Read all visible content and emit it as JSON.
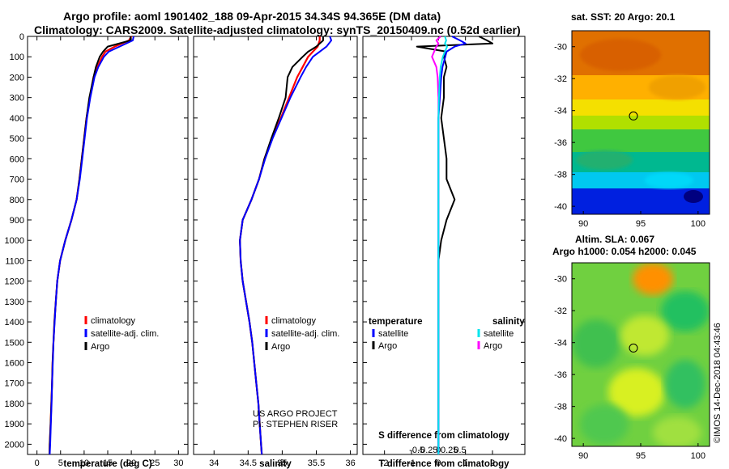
{
  "header": {
    "line1": "Argo profile: aoml 1901402_188 09-Apr-2015 34.34S 94.365E (DM data)",
    "line2": "Climatology: CARS2009. Satellite-adjusted climatology: synTS_20150409.nc (0.52d earlier)"
  },
  "colors": {
    "climatology": "#ff0000",
    "satellite": "#0000ff",
    "argo": "#000000",
    "satellite_s": "#00e5ee",
    "argo_s": "#ff00ff"
  },
  "chart_data": [
    {
      "type": "line",
      "name": "temperature-profile",
      "xlabel": "temperature (deg C)",
      "ylabel": "",
      "xlim": [
        -2,
        32
      ],
      "ylim": [
        2050,
        0
      ],
      "x_ticks": [
        "0",
        "5",
        "10",
        "15",
        "20",
        "25",
        "30"
      ],
      "y_ticks": [
        "0",
        "100",
        "200",
        "300",
        "400",
        "500",
        "600",
        "700",
        "800",
        "900",
        "1000",
        "1100",
        "1200",
        "1300",
        "1400",
        "1500",
        "1600",
        "1700",
        "1800",
        "1900",
        "2000"
      ],
      "legend": [
        "climatology",
        "satellite-adj. clim.",
        "Argo"
      ],
      "depth": [
        0,
        20,
        50,
        75,
        100,
        150,
        200,
        300,
        400,
        500,
        600,
        700,
        800,
        900,
        1000,
        1100,
        1200,
        1300,
        1400,
        1500,
        1600,
        1700,
        1800,
        1900,
        2000,
        2050
      ],
      "series": [
        {
          "name": "climatology",
          "values": [
            20.0,
            19.5,
            16.5,
            14.5,
            13.8,
            12.8,
            12.0,
            11.2,
            10.5,
            10.0,
            9.5,
            9.0,
            8.4,
            7.3,
            6.0,
            4.9,
            4.3,
            4.0,
            3.7,
            3.5,
            3.3,
            3.2,
            3.05,
            2.9,
            2.7,
            2.65
          ]
        },
        {
          "name": "satellite-adj. clim.",
          "values": [
            20.5,
            20.3,
            17.5,
            15.2,
            14.2,
            13.0,
            12.2,
            11.3,
            10.6,
            10.1,
            9.6,
            9.1,
            8.4,
            7.3,
            6.0,
            4.9,
            4.3,
            4.0,
            3.75,
            3.5,
            3.35,
            3.2,
            3.1,
            2.95,
            2.8,
            2.7
          ]
        },
        {
          "name": "Argo",
          "values": [
            19.8,
            19.8,
            15.0,
            14.0,
            13.3,
            12.5,
            12.0,
            11.1,
            10.5,
            10.0,
            9.5,
            9.0,
            8.4,
            7.3,
            6.0,
            4.9,
            4.3,
            4.0,
            3.7,
            3.5,
            3.3,
            3.2,
            3.05,
            2.9,
            2.7,
            2.65
          ]
        }
      ]
    },
    {
      "type": "line",
      "name": "salinity-profile",
      "xlabel": "salinity",
      "xlim": [
        33.7,
        36.1
      ],
      "ylim": [
        2050,
        0
      ],
      "x_ticks": [
        "34",
        "34.5",
        "35",
        "35.5",
        "36"
      ],
      "legend": [
        "climatology",
        "satellite-adj. clim.",
        "Argo"
      ],
      "annotation": [
        "US ARGO PROJECT",
        "PI: STEPHEN RISER"
      ],
      "depth": [
        0,
        20,
        50,
        75,
        100,
        150,
        200,
        300,
        400,
        500,
        600,
        700,
        800,
        900,
        1000,
        1100,
        1200,
        1300,
        1400,
        1500,
        1600,
        1700,
        1800,
        1900,
        2000,
        2050
      ],
      "series": [
        {
          "name": "climatology",
          "values": [
            35.55,
            35.55,
            35.52,
            35.45,
            35.38,
            35.3,
            35.22,
            35.1,
            34.98,
            34.85,
            34.74,
            34.66,
            34.55,
            34.42,
            34.38,
            34.39,
            34.42,
            34.47,
            34.52,
            34.56,
            34.59,
            34.62,
            34.65,
            34.67,
            34.69,
            34.7
          ]
        },
        {
          "name": "satellite-adj. clim.",
          "values": [
            35.7,
            35.72,
            35.65,
            35.55,
            35.45,
            35.35,
            35.27,
            35.12,
            34.99,
            34.86,
            34.75,
            34.66,
            34.55,
            34.42,
            34.38,
            34.39,
            34.42,
            34.47,
            34.52,
            34.56,
            34.59,
            34.62,
            34.65,
            34.67,
            34.69,
            34.7
          ]
        },
        {
          "name": "Argo",
          "values": [
            35.6,
            35.6,
            35.5,
            35.38,
            35.3,
            35.15,
            35.08,
            35.05,
            34.95,
            34.84,
            34.74,
            34.66,
            34.55,
            34.42,
            34.38,
            34.39,
            34.42,
            34.47,
            34.52,
            34.56,
            34.59,
            34.62,
            34.65,
            34.67,
            34.69,
            34.7
          ]
        }
      ]
    },
    {
      "type": "line",
      "name": "difference-profile",
      "xlabel": "T difference from climatology",
      "xlabel_top": "S difference from climatology",
      "xlim": [
        -2.8,
        3.2
      ],
      "ylim": [
        2050,
        0
      ],
      "x_ticks": [
        "-2",
        "-1",
        "0",
        "1",
        "2"
      ],
      "s_ticks": [
        "-0.5",
        "-0.25",
        "0",
        "0.25",
        "0.5"
      ],
      "legend_t": {
        "title": "temperature",
        "items": [
          "satellite",
          "Argo"
        ]
      },
      "legend_s": {
        "title": "salinity",
        "items": [
          "satellite",
          "Argo"
        ]
      },
      "depth": [
        0,
        20,
        35,
        50,
        75,
        100,
        150,
        200,
        300,
        400,
        500,
        600,
        700,
        800,
        900,
        1000,
        1100,
        1200,
        1400,
        1600,
        1800,
        1900,
        2000,
        2050
      ],
      "series": [
        {
          "name": "T satellite",
          "values": [
            0.5,
            0.8,
            1.0,
            0.6,
            0.3,
            0.25,
            0.15,
            0.1,
            0.05,
            0.0,
            0.0,
            0.0,
            0.0,
            0.0,
            0.0,
            0.0,
            0.0,
            0.0,
            0.0,
            0.0,
            0.0,
            0.0,
            0.0,
            0.0
          ]
        },
        {
          "name": "T Argo",
          "values": [
            1.5,
            1.8,
            2.0,
            -0.8,
            0.3,
            0.2,
            0.3,
            0.2,
            0.2,
            0.1,
            0.2,
            0.3,
            0.3,
            0.6,
            0.3,
            0.1,
            0.0,
            0.0,
            0.0,
            0.0,
            0.0,
            0.0,
            0.0,
            0.0
          ]
        },
        {
          "name": "S satellite",
          "values": [
            0.15,
            0.18,
            0.15,
            0.2,
            0.15,
            0.1,
            0.05,
            0.03,
            0.01,
            0.0,
            0.0,
            0.0,
            0.0,
            0.0,
            0.0,
            0.0,
            0.0,
            0.0,
            0.0,
            0.0,
            0.0,
            0.0,
            0.0,
            0.0
          ]
        },
        {
          "name": "S Argo",
          "values": [
            0.05,
            -0.05,
            0.0,
            -0.05,
            -0.1,
            -0.15,
            -0.05,
            -0.02,
            0.0,
            0.0,
            0.0,
            0.0,
            0.0,
            0.0,
            0.0,
            0.0,
            0.0,
            0.0,
            0.0,
            0.0,
            0.0,
            0.0,
            0.0,
            0.0
          ]
        }
      ]
    },
    {
      "type": "heatmap",
      "name": "sst-map",
      "title": "sat. SST: 20 Argo: 20.1",
      "x_ticks": [
        "90",
        "95",
        "100"
      ],
      "y_ticks": [
        "-30",
        "-32",
        "-34",
        "-36",
        "-38",
        "-40"
      ],
      "xlim": [
        89,
        101
      ],
      "ylim": [
        -40.5,
        -29
      ],
      "float_position": {
        "lon": 94.365,
        "lat": -34.34
      }
    },
    {
      "type": "heatmap",
      "name": "sla-map",
      "title": "Altim. SLA: 0.067",
      "subtitle": "Argo h1000: 0.054 h2000: 0.045",
      "x_ticks": [
        "90",
        "95",
        "100"
      ],
      "y_ticks": [
        "-30",
        "-32",
        "-34",
        "-36",
        "-38",
        "-40"
      ],
      "xlim": [
        89,
        101
      ],
      "ylim": [
        -40.5,
        -29
      ],
      "float_position": {
        "lon": 94.365,
        "lat": -34.34
      }
    }
  ],
  "credit": "©IMOS 14-Dec-2018 04:43:46"
}
